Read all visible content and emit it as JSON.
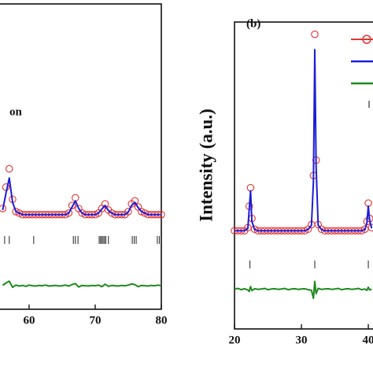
{
  "chart_data": [
    {
      "type": "line",
      "annotation": "on",
      "xlim": [
        55.6,
        80
      ],
      "ylim": [
        0,
        100
      ],
      "xticks": [
        60,
        70,
        80
      ],
      "x": [
        56,
        56.5,
        57,
        57.5,
        58,
        58.5,
        59,
        59.5,
        60,
        60.5,
        61,
        61.5,
        62,
        62.5,
        63,
        63.5,
        64,
        64.5,
        65,
        65.5,
        66,
        66.5,
        67,
        67.5,
        68,
        68.5,
        69,
        69.5,
        70,
        70.5,
        71,
        71.5,
        72,
        72.5,
        73,
        73.5,
        74,
        74.5,
        75,
        75.5,
        76,
        76.5,
        77,
        77.5,
        78,
        78.5,
        79,
        79.5,
        80
      ],
      "series": [
        {
          "style": "circles",
          "color": "#e03535",
          "values": [
            33,
            40,
            46,
            36,
            32,
            31.5,
            31,
            31,
            31,
            31,
            31,
            31,
            31,
            31,
            31,
            31,
            31,
            31,
            31,
            31,
            31.5,
            34,
            36.5,
            33,
            31.5,
            31,
            31,
            31,
            31,
            31.5,
            33,
            34.5,
            32.5,
            31.5,
            31,
            31,
            31,
            31,
            32,
            34.5,
            35.5,
            33.5,
            32,
            31.5,
            31,
            31,
            31,
            31,
            31
          ]
        },
        {
          "style": "line",
          "color": "#1c1cd8",
          "values": [
            32.5,
            38,
            43,
            35,
            32,
            31.5,
            31,
            31,
            31,
            31,
            31,
            31,
            31,
            31,
            31,
            31,
            31,
            31,
            31,
            31,
            31.5,
            33.5,
            35.5,
            33,
            31.5,
            31,
            31,
            31,
            31,
            31.5,
            32.8,
            34,
            32.3,
            31.5,
            31,
            31,
            31,
            31,
            31.8,
            34,
            35,
            33.3,
            32,
            31.5,
            31,
            31,
            31,
            31,
            31
          ]
        },
        {
          "style": "line",
          "color": "#1d8a1d",
          "values": [
            7.8,
            8.6,
            9.2,
            7.2,
            7.9,
            7.6,
            7.8,
            7.5,
            7.9,
            7.7,
            7.6,
            7.8,
            7.7,
            7.9,
            7.6,
            7.7,
            7.8,
            7.6,
            7.7,
            7.9,
            7.6,
            8.1,
            8.4,
            7.3,
            7.8,
            7.7,
            7.6,
            7.8,
            7.7,
            7.9,
            7.4,
            8.2,
            7.5,
            7.8,
            7.7,
            7.6,
            7.8,
            7.7,
            7.9,
            8.3,
            8.1,
            7.4,
            7.8,
            7.7,
            7.6,
            7.8,
            7.7,
            7.9,
            7.7
          ]
        },
        {
          "style": "ticks",
          "color": "#333333",
          "x": [
            56.3,
            57,
            60.7,
            66.7,
            67,
            67.4,
            70.6,
            70.8,
            71,
            71.2,
            71.4,
            71.6,
            72,
            75.6,
            75.9,
            76.2,
            79.4,
            79.7
          ],
          "values": [
            22.7,
            22.7,
            22.7,
            22.7,
            22.7,
            22.7,
            22.7,
            22.7,
            22.7,
            22.7,
            22.7,
            22.7,
            22.7,
            22.7,
            22.7,
            22.7,
            22.7,
            22.7
          ]
        }
      ]
    },
    {
      "type": "line",
      "panel_label": "(b)",
      "y_label": "Intensity (a.u.)",
      "xlim": [
        20,
        40.7
      ],
      "ylim": [
        0,
        100
      ],
      "xticks": [
        20,
        30,
        40
      ],
      "x": [
        20,
        20.5,
        21,
        21.5,
        22,
        22.2,
        22.4,
        22.6,
        23,
        23.5,
        24,
        24.5,
        25,
        25.5,
        26,
        26.5,
        27,
        27.5,
        28,
        28.5,
        29,
        29.5,
        30,
        30.5,
        31,
        31.5,
        31.8,
        32,
        32.2,
        32.5,
        33,
        33.5,
        34,
        34.5,
        35,
        35.5,
        36,
        36.5,
        37,
        37.5,
        38,
        38.5,
        39,
        39.5,
        39.8,
        40,
        40.2,
        40.5
      ],
      "series": [
        {
          "style": "circles",
          "color": "#e03535",
          "values": [
            32,
            32,
            32,
            32,
            33,
            40,
            46,
            36,
            32.5,
            32,
            32,
            32,
            32,
            32,
            32,
            32,
            32,
            32,
            32,
            32,
            32,
            32,
            32,
            32,
            32.5,
            34,
            50,
            96,
            55,
            34,
            32.5,
            32,
            32,
            32,
            32,
            32,
            32,
            32,
            32,
            32,
            32,
            32,
            32,
            32.5,
            35,
            41,
            36,
            33
          ]
        },
        {
          "style": "line",
          "color": "#1c1cd8",
          "values": [
            32,
            32,
            32,
            32,
            32.8,
            39,
            45,
            35,
            32.4,
            32,
            32,
            32,
            32,
            32,
            32,
            32,
            32,
            32,
            32,
            32,
            32,
            32,
            32,
            32,
            32.4,
            33.8,
            48,
            91,
            53,
            33.8,
            32.4,
            32,
            32,
            32,
            32,
            32,
            32,
            32,
            32,
            32,
            32,
            32,
            32,
            32.4,
            34.6,
            40,
            35.5,
            32.8
          ]
        },
        {
          "style": "line",
          "color": "#1d8a1d",
          "values": [
            13,
            13.2,
            12.8,
            13.1,
            12.7,
            12.2,
            13.8,
            12.5,
            13.1,
            12.9,
            13,
            13.2,
            12.8,
            13,
            13.1,
            12.9,
            13,
            13.2,
            12.8,
            13,
            13.1,
            12.9,
            13,
            13.1,
            12.8,
            12.6,
            10,
            15.5,
            11.5,
            13.2,
            12.9,
            13,
            13.1,
            12.9,
            13,
            13.2,
            12.8,
            13,
            13.1,
            12.9,
            13,
            13.2,
            12.8,
            13,
            12.6,
            13.6,
            12.7,
            13
          ]
        },
        {
          "style": "ticks",
          "color": "#333333",
          "x": [
            22.3,
            32,
            40
          ],
          "values": [
            21,
            21,
            21
          ]
        }
      ]
    }
  ]
}
